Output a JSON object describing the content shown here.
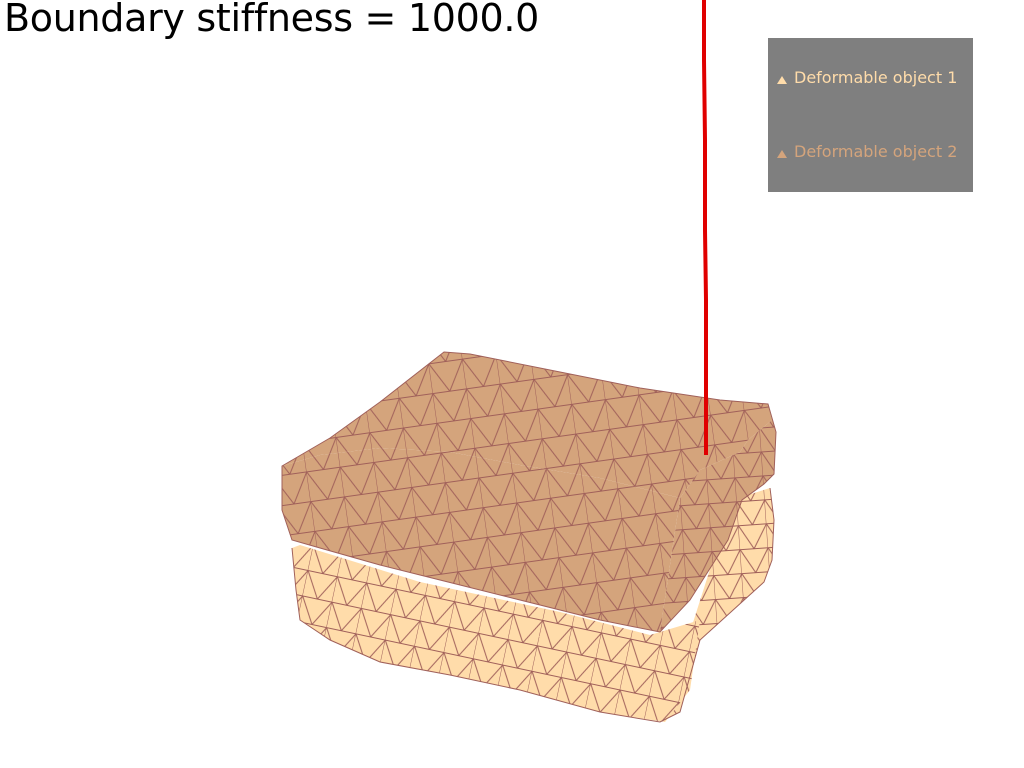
{
  "title": "Boundary stiffness = 1000.0",
  "colors": {
    "background": "#ffffff",
    "object1_fill": "#d4a47c",
    "object2_fill": "#ffdcaa",
    "mesh_edge": "#a0605a",
    "arrow": "#e00000",
    "legend_bg": "#7f7f7f",
    "legend_text_1": "#ffdcaa",
    "legend_text_2": "#d4a47c"
  },
  "legend": {
    "entries": [
      {
        "label": "Deformable object 1",
        "icon": "triangle-marker-icon"
      },
      {
        "label": "Deformable object 2",
        "icon": "triangle-marker-icon"
      }
    ]
  }
}
